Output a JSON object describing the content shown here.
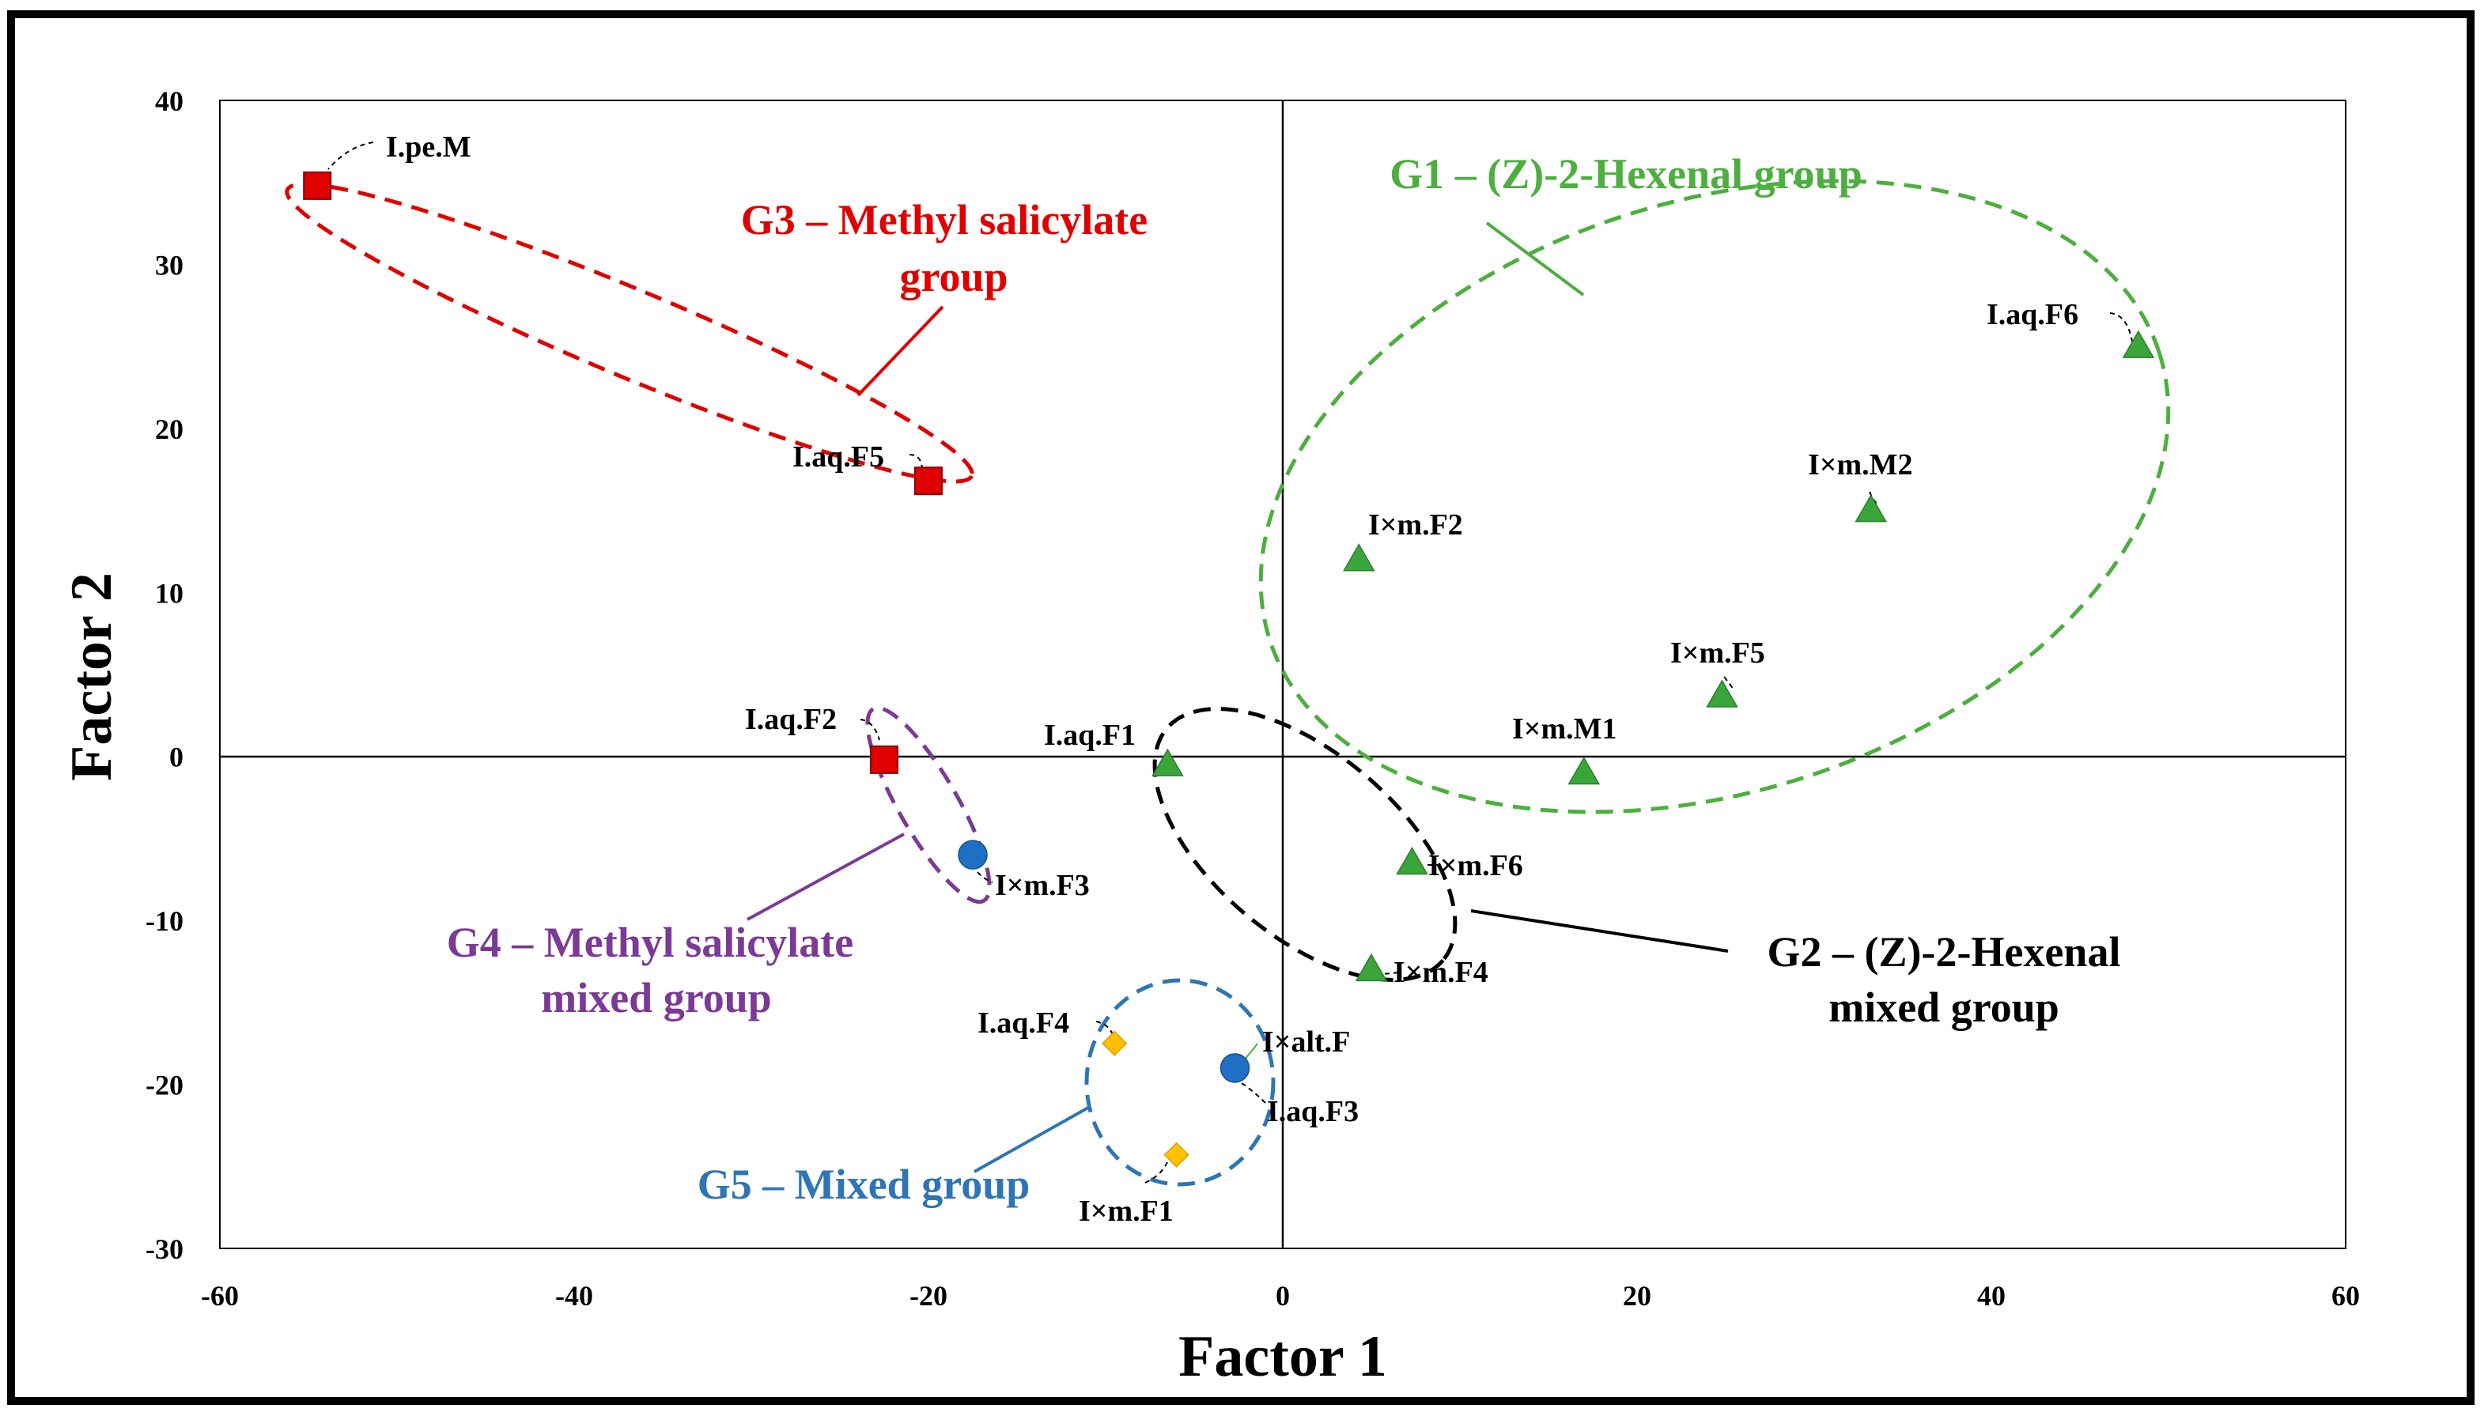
{
  "chart_data": {
    "type": "scatter",
    "title": "",
    "xlabel": "Factor 1",
    "ylabel": "Factor 2",
    "xlim": [
      -60,
      60
    ],
    "ylim": [
      -30,
      40
    ],
    "xticks": [
      -60,
      -40,
      -20,
      0,
      20,
      40,
      60
    ],
    "yticks": [
      -30,
      -20,
      -10,
      0,
      10,
      20,
      30,
      40
    ],
    "grid": false,
    "colors": {
      "green": "#4caf3e",
      "red": "#e00000",
      "purple": "#7b3a96",
      "blue": "#2e75b6",
      "black": "#000000",
      "marker_green": "#3aa63a",
      "marker_red": "#e00000",
      "marker_blue": "#1f6fc5",
      "marker_yellow": "#ffc000"
    },
    "points": [
      {
        "label": "I.pe.M",
        "x": -54.5,
        "y": 34.8,
        "marker": "square",
        "color": "marker_red"
      },
      {
        "label": "I.aq.F5",
        "x": -20.0,
        "y": 16.8,
        "marker": "square",
        "color": "marker_red"
      },
      {
        "label": "I.aq.F2",
        "x": -22.5,
        "y": -0.2,
        "marker": "square",
        "color": "marker_red"
      },
      {
        "label": "I×m.F3",
        "x": -17.5,
        "y": -6.0,
        "marker": "circle",
        "color": "marker_blue"
      },
      {
        "label": "I.aq.F1",
        "x": -6.5,
        "y": -0.5,
        "marker": "triangle",
        "color": "marker_green"
      },
      {
        "label": "I×m.F2",
        "x": 4.3,
        "y": 12.0,
        "marker": "triangle",
        "color": "marker_green"
      },
      {
        "label": "I×m.M1",
        "x": 17.0,
        "y": -1.0,
        "marker": "triangle",
        "color": "marker_green"
      },
      {
        "label": "I×m.F5",
        "x": 24.8,
        "y": 3.7,
        "marker": "triangle",
        "color": "marker_green"
      },
      {
        "label": "I×m.M2",
        "x": 33.2,
        "y": 15.0,
        "marker": "triangle",
        "color": "marker_green"
      },
      {
        "label": "I.aq.F6",
        "x": 48.3,
        "y": 25.0,
        "marker": "triangle",
        "color": "marker_green"
      },
      {
        "label": "I×m.F6",
        "x": 7.3,
        "y": -6.5,
        "marker": "triangle",
        "color": "marker_green"
      },
      {
        "label": "I×m.F4",
        "x": 5.0,
        "y": -13.0,
        "marker": "triangle",
        "color": "marker_green"
      },
      {
        "label": "I.aq.F4",
        "x": -9.5,
        "y": -17.5,
        "marker": "diamond",
        "color": "marker_yellow"
      },
      {
        "label": "I×m.F1",
        "x": -6.0,
        "y": -24.3,
        "marker": "diamond",
        "color": "marker_yellow"
      },
      {
        "label": "I×alt.F",
        "x": -2.7,
        "y": -19.0,
        "marker": "circle",
        "color": "marker_blue"
      },
      {
        "label": "I.aq.F3",
        "x": -2.7,
        "y": -19.0,
        "marker": "none",
        "color": "marker_blue"
      }
    ],
    "groups": [
      {
        "name": "G1 – (Z)-2-Hexenal group",
        "color": "green"
      },
      {
        "name": "G2 – (Z)-2-Hexenal mixed group",
        "color": "black"
      },
      {
        "name": "G3 – Methyl salicylate group",
        "color": "red"
      },
      {
        "name": "G4 – Methyl salicylate mixed group",
        "color": "purple"
      },
      {
        "name": "G5 – Mixed group",
        "color": "blue"
      }
    ]
  },
  "group_labels": {
    "g1": "G1 – (Z)-2-Hexenal group",
    "g2_line1": "G2 – (Z)-2-Hexenal",
    "g2_line2": "mixed group",
    "g3_line1": "G3 – Methyl salicylate",
    "g3_line2": "group",
    "g4_line1": "G4 – Methyl salicylate",
    "g4_line2": "mixed group",
    "g5": "G5 – Mixed group"
  }
}
